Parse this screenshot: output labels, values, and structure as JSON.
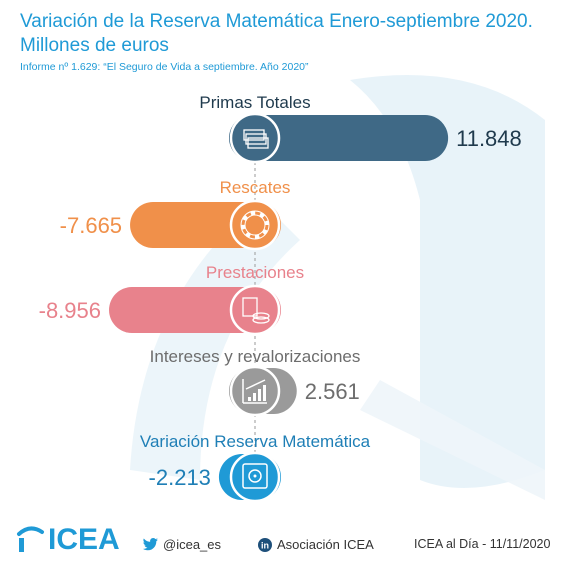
{
  "title": "Variación de la Reserva Matemática Enero-septiembre 2020. Millones de euros",
  "subtitle": "Informe nº 1.629: “El Seguro de Vida a septiembre. Año 2020”",
  "chart_data": {
    "type": "bar",
    "categories": [
      "Primas Totales",
      "Rescates",
      "Prestaciones",
      "Intereses y revalorizaciones",
      "Variación Reserva Matemática"
    ],
    "values": [
      11848,
      -7665,
      -8956,
      2561,
      -2213
    ],
    "value_labels": [
      "11.848",
      "-7.665",
      "-8.956",
      "2.561",
      "-2.213"
    ],
    "colors": [
      "#3f6986",
      "#f0904a",
      "#e8828c",
      "#9a9a9a",
      "#1f9ad6"
    ],
    "icons": [
      "money-stack-icon",
      "lifebuoy-icon",
      "calculator-coins-icon",
      "growth-chart-icon",
      "safe-icon"
    ]
  },
  "footer": {
    "logo_text": "ICEA",
    "twitter": "@icea_es",
    "linkedin": "Asociación ICEA",
    "date_text": "ICEA al Día - 11/11/2020"
  }
}
